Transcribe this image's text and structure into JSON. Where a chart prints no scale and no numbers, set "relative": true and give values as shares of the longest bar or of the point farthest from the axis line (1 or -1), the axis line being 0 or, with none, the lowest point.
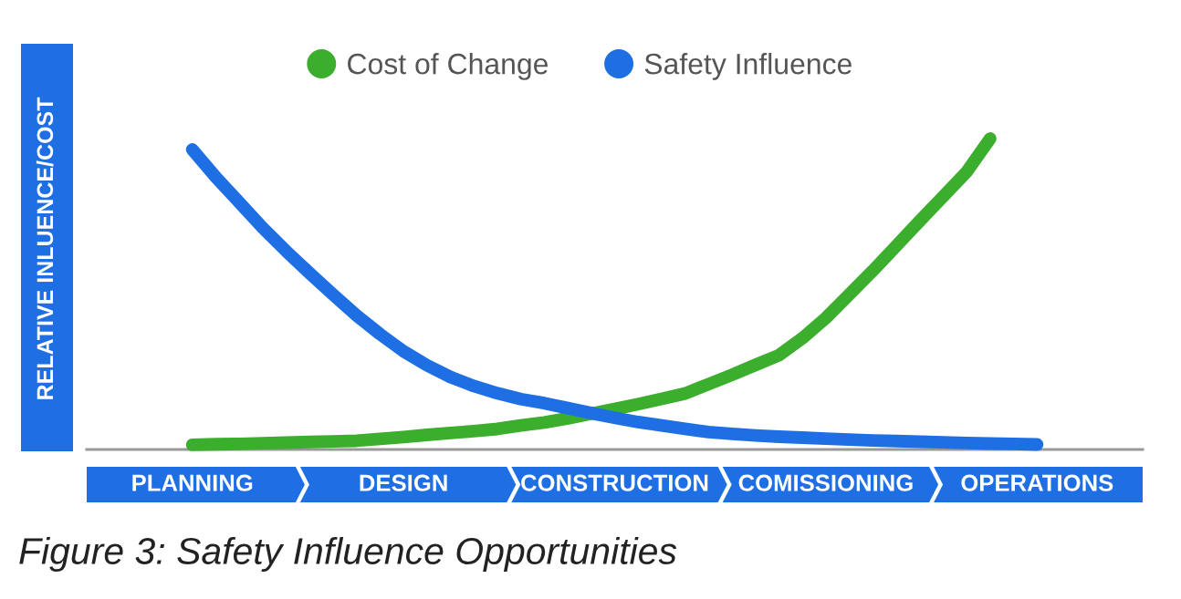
{
  "chart_data": {
    "type": "line",
    "relative": true,
    "ylabel": "RELATIVE INLUENCE/COST",
    "legend": "top",
    "categories": [
      null,
      null,
      null,
      null,
      "PLANNING",
      null,
      null,
      null,
      null,
      null,
      null,
      null,
      null,
      "DESIGN",
      null,
      null,
      null,
      null,
      null,
      null,
      null,
      null,
      "CONSTRUCTION",
      null,
      null,
      null,
      null,
      null,
      null,
      null,
      null,
      "COMISSIONING",
      null,
      null,
      null,
      null,
      null,
      null,
      null,
      null,
      "OPERATIONS",
      null,
      null,
      null,
      null
    ],
    "series": [
      {
        "name": "Cost of Change",
        "color": "#3cae2d",
        "values": [
          null,
          null,
          null,
          null,
          0.015,
          0.017,
          0.018,
          0.02,
          0.022,
          0.024,
          0.026,
          0.028,
          0.034,
          0.04,
          0.047,
          0.053,
          0.059,
          0.066,
          0.077,
          0.087,
          0.1,
          0.115,
          0.13,
          0.146,
          0.163,
          0.18,
          0.21,
          0.24,
          0.272,
          0.303,
          0.358,
          0.423,
          0.499,
          0.575,
          0.655,
          0.735,
          0.814,
          0.893,
          1.0,
          null,
          null,
          null,
          null,
          null,
          null
        ]
      },
      {
        "name": "Safety Influence",
        "color": "#1e6fe3",
        "values": [
          null,
          null,
          null,
          null,
          0.965,
          0.876,
          0.795,
          0.713,
          0.638,
          0.567,
          0.498,
          0.431,
          0.371,
          0.316,
          0.271,
          0.233,
          0.204,
          0.181,
          0.162,
          0.149,
          0.133,
          0.117,
          0.102,
          0.088,
          0.077,
          0.066,
          0.056,
          0.05,
          0.045,
          0.041,
          0.038,
          0.035,
          0.032,
          0.029,
          0.027,
          0.025,
          0.023,
          0.021,
          0.019,
          0.018,
          0.016,
          null,
          null,
          null,
          null
        ]
      }
    ],
    "annotations": [
      "Figure 3: Safety Influence Opportunities"
    ]
  }
}
